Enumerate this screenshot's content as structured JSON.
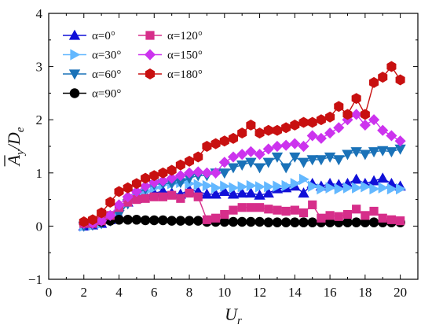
{
  "chart_data": {
    "type": "line",
    "xlabel_main": "U",
    "xlabel_sub": "r",
    "ylabel_main": "A",
    "ylabel_sub1": "y",
    "ylabel_slash": "/D",
    "ylabel_sub2": "e",
    "xlim": [
      0,
      21
    ],
    "ylim": [
      -1,
      4
    ],
    "xticks": [
      0,
      2,
      4,
      6,
      8,
      10,
      12,
      14,
      16,
      18,
      20
    ],
    "yticks": [
      -1,
      0,
      1,
      2,
      3,
      4
    ],
    "legend_placement": "top-left",
    "x": [
      2.0,
      2.5,
      3.0,
      3.5,
      4.0,
      4.5,
      5.0,
      5.5,
      6.0,
      6.5,
      7.0,
      7.5,
      8.0,
      8.5,
      9.0,
      9.5,
      10.0,
      10.5,
      11.0,
      11.5,
      12.0,
      12.5,
      13.0,
      13.5,
      14.0,
      14.5,
      15.0,
      15.5,
      16.0,
      16.5,
      17.0,
      17.5,
      18.0,
      18.5,
      19.0,
      19.5,
      20.0
    ],
    "series": [
      {
        "name": "α=0°",
        "color": "#1010d8",
        "marker": "triangle-up",
        "values": [
          0.0,
          0.02,
          0.05,
          0.12,
          0.2,
          0.45,
          0.52,
          0.58,
          0.62,
          0.66,
          0.62,
          0.6,
          0.68,
          0.65,
          0.6,
          0.6,
          0.65,
          0.6,
          0.62,
          0.62,
          0.58,
          0.62,
          0.7,
          0.72,
          0.75,
          0.62,
          0.8,
          0.75,
          0.8,
          0.78,
          0.8,
          0.88,
          0.8,
          0.85,
          0.9,
          0.8,
          0.75
        ]
      },
      {
        "name": "α=30°",
        "color": "#63b8ff",
        "marker": "triangle-right",
        "values": [
          0.0,
          0.02,
          0.05,
          0.15,
          0.3,
          0.45,
          0.6,
          0.65,
          0.72,
          0.78,
          0.8,
          0.82,
          0.8,
          0.78,
          0.76,
          0.72,
          0.75,
          0.72,
          0.74,
          0.76,
          0.74,
          0.74,
          0.75,
          0.76,
          0.8,
          0.88,
          0.75,
          0.7,
          0.72,
          0.7,
          0.72,
          0.72,
          0.74,
          0.7,
          0.72,
          0.7,
          0.7
        ]
      },
      {
        "name": "α=60°",
        "color": "#1a72b8",
        "marker": "triangle-down",
        "values": [
          0.0,
          0.02,
          0.05,
          0.1,
          0.22,
          0.42,
          0.6,
          0.7,
          0.78,
          0.8,
          0.8,
          0.82,
          0.9,
          0.95,
          0.95,
          1.0,
          1.0,
          1.1,
          1.15,
          1.2,
          1.1,
          1.2,
          1.3,
          1.1,
          1.3,
          1.2,
          1.25,
          1.25,
          1.3,
          1.25,
          1.35,
          1.4,
          1.35,
          1.4,
          1.42,
          1.4,
          1.45
        ]
      },
      {
        "name": "α=90°",
        "color": "#000000",
        "marker": "circle",
        "values": [
          0.05,
          0.05,
          0.08,
          0.1,
          0.12,
          0.12,
          0.12,
          0.11,
          0.11,
          0.11,
          0.1,
          0.1,
          0.1,
          0.1,
          0.08,
          0.08,
          0.08,
          0.08,
          0.08,
          0.08,
          0.08,
          0.07,
          0.07,
          0.07,
          0.07,
          0.07,
          0.07,
          0.07,
          0.07,
          0.07,
          0.07,
          0.07,
          0.07,
          0.07,
          0.07,
          0.07,
          0.07
        ]
      },
      {
        "name": "α=120°",
        "color": "#d62e8a",
        "marker": "square",
        "values": [
          0.05,
          0.05,
          0.1,
          0.2,
          0.35,
          0.45,
          0.5,
          0.52,
          0.55,
          0.55,
          0.58,
          0.52,
          0.62,
          0.55,
          0.12,
          0.15,
          0.22,
          0.3,
          0.35,
          0.35,
          0.35,
          0.32,
          0.3,
          0.28,
          0.3,
          0.25,
          0.4,
          0.15,
          0.2,
          0.18,
          0.22,
          0.32,
          0.2,
          0.28,
          0.15,
          0.12,
          0.1
        ]
      },
      {
        "name": "α=150°",
        "color": "#cc33ee",
        "marker": "diamond",
        "values": [
          0.05,
          0.05,
          0.1,
          0.2,
          0.4,
          0.55,
          0.65,
          0.75,
          0.82,
          0.85,
          0.9,
          0.95,
          1.0,
          1.02,
          1.0,
          1.0,
          1.2,
          1.3,
          1.35,
          1.4,
          1.35,
          1.45,
          1.5,
          1.52,
          1.55,
          1.5,
          1.7,
          1.65,
          1.75,
          1.85,
          2.0,
          2.1,
          1.9,
          2.0,
          1.8,
          1.7,
          1.6
        ]
      },
      {
        "name": "α=180°",
        "color": "#c81010",
        "marker": "hexagon",
        "values": [
          0.08,
          0.12,
          0.25,
          0.45,
          0.65,
          0.72,
          0.8,
          0.9,
          0.95,
          1.0,
          1.05,
          1.15,
          1.22,
          1.3,
          1.5,
          1.55,
          1.6,
          1.65,
          1.75,
          1.9,
          1.75,
          1.8,
          1.8,
          1.85,
          1.9,
          1.95,
          1.95,
          2.0,
          2.05,
          2.25,
          2.1,
          2.4,
          2.1,
          2.7,
          2.8,
          3.0,
          2.75
        ]
      }
    ]
  }
}
